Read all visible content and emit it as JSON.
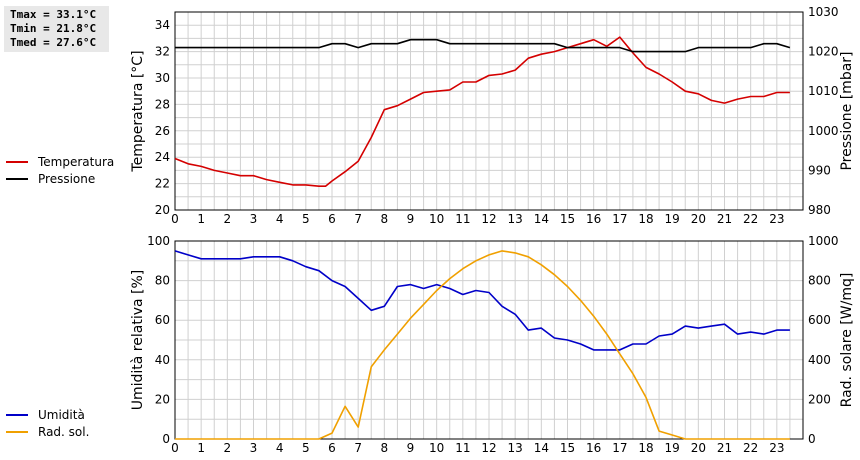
{
  "stats": {
    "tmax": "Tmax = 33.1°C",
    "tmin": "Tmin = 21.8°C",
    "tmed": "Tmed = 27.6°C"
  },
  "colors": {
    "temperature": "#d40000",
    "pressure": "#000000",
    "humidity": "#0000c8",
    "solar": "#f0a000",
    "grid": "#d0d0d0"
  },
  "chart_data": [
    {
      "type": "line",
      "x_ticks": [
        0,
        1,
        2,
        3,
        4,
        5,
        6,
        7,
        8,
        9,
        10,
        11,
        12,
        13,
        14,
        15,
        16,
        17,
        18,
        19,
        20,
        21,
        22,
        23
      ],
      "xlim": [
        0,
        24
      ],
      "ylabel": "Temperatura [°C]",
      "y2label": "Pressione [mbar]",
      "ylim": [
        20,
        35
      ],
      "y_ticks": [
        20,
        22,
        24,
        26,
        28,
        30,
        32,
        34
      ],
      "y2lim": [
        980,
        1030
      ],
      "y2_ticks": [
        980,
        990,
        1000,
        1010,
        1020,
        1030
      ],
      "grid": true,
      "legend_position": "left",
      "series": [
        {
          "name": "Temperatura",
          "axis": "left",
          "color_key": "temperature",
          "x": [
            0,
            0.5,
            1,
            1.5,
            2,
            2.5,
            3,
            3.5,
            4,
            4.5,
            5,
            5.5,
            5.75,
            6,
            6.5,
            7,
            7.5,
            8,
            8.5,
            9,
            9.5,
            10,
            10.5,
            11,
            11.5,
            12,
            12.5,
            13,
            13.5,
            14,
            14.5,
            15,
            15.5,
            16,
            16.5,
            17,
            17.5,
            18,
            18.5,
            19,
            19.5,
            20,
            20.5,
            21,
            21.5,
            22,
            22.5,
            23,
            23.5
          ],
          "y": [
            23.9,
            23.5,
            23.3,
            23.0,
            22.8,
            22.6,
            22.6,
            22.3,
            22.1,
            21.9,
            21.9,
            21.8,
            21.8,
            22.2,
            22.9,
            23.7,
            25.5,
            27.6,
            27.9,
            28.4,
            28.9,
            29.0,
            29.1,
            29.7,
            29.7,
            30.2,
            30.3,
            30.6,
            31.5,
            31.8,
            32.0,
            32.3,
            32.6,
            32.9,
            32.4,
            33.1,
            31.9,
            30.8,
            30.3,
            29.7,
            29.0,
            28.8,
            28.3,
            28.1,
            28.4,
            28.6,
            28.6,
            28.9,
            28.9
          ]
        },
        {
          "name": "Pressione",
          "axis": "right",
          "color_key": "pressure",
          "x": [
            0,
            0.5,
            1,
            1.5,
            2,
            2.5,
            3,
            3.5,
            4,
            4.5,
            5,
            5.5,
            6,
            6.5,
            7,
            7.5,
            8,
            8.5,
            9,
            9.5,
            10,
            10.5,
            11,
            11.5,
            12,
            12.5,
            13,
            13.5,
            14,
            14.5,
            15,
            15.5,
            16,
            16.5,
            17,
            17.5,
            18,
            18.5,
            19,
            19.5,
            20,
            20.5,
            21,
            21.5,
            22,
            22.5,
            23,
            23.5
          ],
          "y": [
            1021,
            1021,
            1021,
            1021,
            1021,
            1021,
            1021,
            1021,
            1021,
            1021,
            1021,
            1021,
            1022,
            1022,
            1021,
            1022,
            1022,
            1022,
            1023,
            1023,
            1023,
            1022,
            1022,
            1022,
            1022,
            1022,
            1022,
            1022,
            1022,
            1022,
            1021,
            1021,
            1021,
            1021,
            1021,
            1020,
            1020,
            1020,
            1020,
            1020,
            1021,
            1021,
            1021,
            1021,
            1021,
            1022,
            1022,
            1021
          ]
        }
      ]
    },
    {
      "type": "line",
      "x_ticks": [
        0,
        1,
        2,
        3,
        4,
        5,
        6,
        7,
        8,
        9,
        10,
        11,
        12,
        13,
        14,
        15,
        16,
        17,
        18,
        19,
        20,
        21,
        22,
        23
      ],
      "xlim": [
        0,
        24
      ],
      "ylabel": "Umidità relativa [%]",
      "y2label": "Rad. solare [W/mq]",
      "ylim": [
        0,
        100
      ],
      "y_ticks": [
        0,
        20,
        40,
        60,
        80,
        100
      ],
      "y2lim": [
        0,
        1000
      ],
      "y2_ticks": [
        0,
        200,
        400,
        600,
        800,
        1000
      ],
      "grid": true,
      "legend_position": "left",
      "series": [
        {
          "name": "Umidità",
          "axis": "left",
          "color_key": "humidity",
          "x": [
            0,
            0.5,
            1,
            1.5,
            2,
            2.5,
            3,
            3.5,
            4,
            4.5,
            5,
            5.5,
            6,
            6.5,
            7,
            7.5,
            8,
            8.5,
            9,
            9.5,
            10,
            10.5,
            11,
            11.5,
            12,
            12.5,
            13,
            13.5,
            14,
            14.5,
            15,
            15.5,
            16,
            16.5,
            17,
            17.5,
            18,
            18.5,
            19,
            19.5,
            20,
            20.5,
            21,
            21.5,
            22,
            22.5,
            23,
            23.5
          ],
          "y": [
            95,
            93,
            91,
            91,
            91,
            91,
            92,
            92,
            92,
            90,
            87,
            85,
            80,
            77,
            71,
            65,
            67,
            77,
            78,
            76,
            78,
            76,
            73,
            75,
            74,
            67,
            63,
            55,
            56,
            51,
            50,
            48,
            45,
            45,
            45,
            48,
            48,
            52,
            53,
            57,
            56,
            57,
            58,
            53,
            54,
            53,
            55,
            55
          ]
        },
        {
          "name": "Rad. sol.",
          "axis": "right",
          "color_key": "solar",
          "x": [
            0,
            1,
            2,
            3,
            4,
            5,
            5.5,
            6,
            6.5,
            7,
            7.5,
            8,
            8.5,
            9,
            9.5,
            10,
            10.5,
            11,
            11.5,
            12,
            12.5,
            13,
            13.5,
            14,
            14.5,
            15,
            15.5,
            16,
            16.5,
            17,
            17.5,
            18,
            18.5,
            19,
            19.5,
            20,
            21,
            22,
            23,
            23.5
          ],
          "y": [
            0,
            0,
            0,
            0,
            0,
            0,
            0,
            30,
            165,
            60,
            365,
            450,
            530,
            610,
            680,
            750,
            810,
            860,
            900,
            930,
            950,
            940,
            920,
            880,
            830,
            770,
            700,
            620,
            530,
            430,
            330,
            210,
            40,
            20,
            0,
            0,
            0,
            0,
            0,
            0
          ]
        }
      ]
    }
  ]
}
